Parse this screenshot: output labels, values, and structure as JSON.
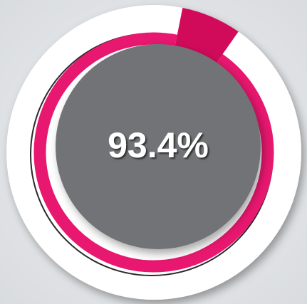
{
  "chart_data": {
    "type": "gauge",
    "values": [
      93.4
    ],
    "value_labels": [
      "93.4%"
    ],
    "ylim": [
      0,
      100
    ],
    "color": "#e8176f",
    "remainder_color": "#d10a5a"
  }
}
